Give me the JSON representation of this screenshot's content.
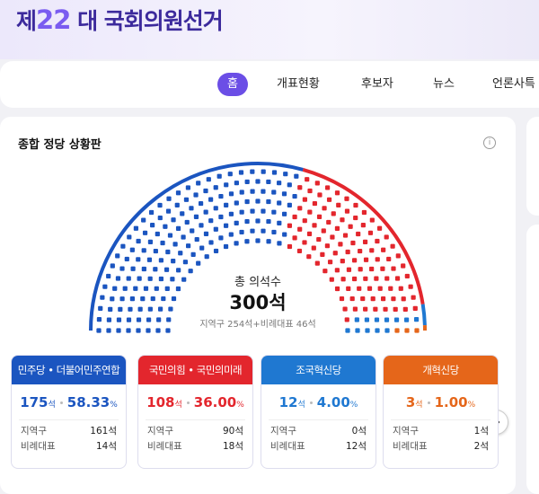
{
  "header": {
    "title_prefix": "제",
    "title_number": "22",
    "title_suffix": "대 국회의원선거"
  },
  "nav": [
    "홈",
    "개표현황",
    "후보자",
    "뉴스",
    "언론사특"
  ],
  "board": {
    "title": "종합 정당 상황판",
    "total_label": "총 의석수",
    "total": "300석",
    "breakdown": "지역구 254석+비례대표 46석",
    "units": {
      "seat": "석",
      "percent": "%"
    },
    "parties": [
      {
        "name": "민주당 • 더불어민주연합",
        "color": "#1b55c0",
        "seats": 175,
        "share": "58.33",
        "rows": [
          {
            "label": "지역구",
            "value": "161석"
          },
          {
            "label": "비례대표",
            "value": "14석"
          }
        ]
      },
      {
        "name": "국민의힘 • 국민의미래",
        "color": "#e3262d",
        "seats": 108,
        "share": "36.00",
        "rows": [
          {
            "label": "지역구",
            "value": "90석"
          },
          {
            "label": "비례대표",
            "value": "18석"
          }
        ]
      },
      {
        "name": "조국혁신당",
        "color": "#1f78d1",
        "seats": 12,
        "share": "4.00",
        "rows": [
          {
            "label": "지역구",
            "value": "0석"
          },
          {
            "label": "비례대표",
            "value": "12석"
          }
        ]
      },
      {
        "name": "개혁신당",
        "color": "#e5661a",
        "seats": 3,
        "share": "1.00",
        "rows": [
          {
            "label": "지역구",
            "value": "1석"
          },
          {
            "label": "비례대표",
            "value": "2석"
          }
        ]
      }
    ]
  }
}
